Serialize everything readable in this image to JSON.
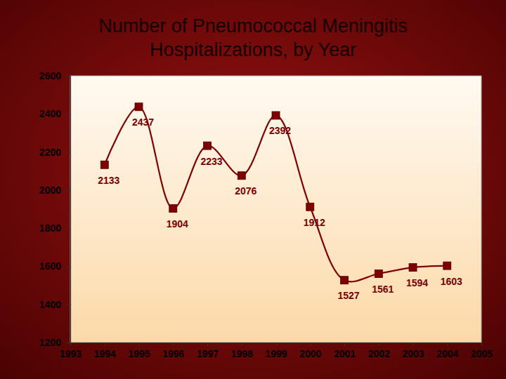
{
  "chart_data": {
    "type": "line",
    "title": "Number of Pneumococcal Meningitis\nHospitalizations, by Year",
    "x": [
      1994,
      1995,
      1996,
      1997,
      1998,
      1999,
      2000,
      2001,
      2002,
      2003,
      2004
    ],
    "values": [
      2133,
      2437,
      1904,
      2233,
      2076,
      2392,
      1912,
      1527,
      1561,
      1594,
      1603
    ],
    "xlim": [
      1993,
      2005
    ],
    "xticks": [
      1993,
      1994,
      1995,
      1996,
      1997,
      1998,
      1999,
      2000,
      2001,
      2002,
      2003,
      2004,
      2005
    ],
    "ylim": [
      1200,
      2600
    ],
    "yticks": [
      1200,
      1400,
      1600,
      1800,
      2000,
      2200,
      2400,
      2600
    ],
    "color": "#800000",
    "marker": "square",
    "data_labels": true,
    "grid": false
  }
}
